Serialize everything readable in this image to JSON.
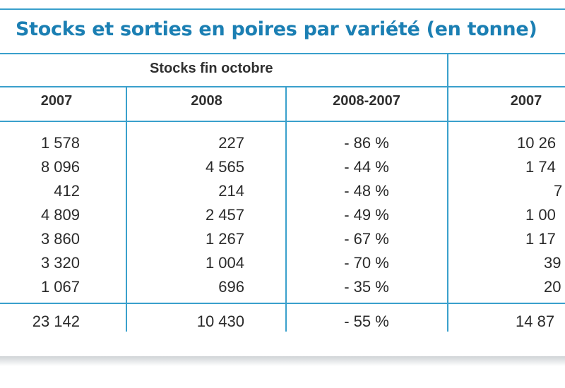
{
  "title": "Stocks et sorties en poires par variété (en tonne)",
  "group_header": "Stocks fin octobre",
  "columns": [
    "2007",
    "2008",
    "2008-2007",
    "2007"
  ],
  "rows": [
    [
      "1 578",
      "227",
      "- 86 %",
      "10 26"
    ],
    [
      "8 096",
      "4 565",
      "- 44 %",
      "1 74"
    ],
    [
      "412",
      "214",
      "- 48 %",
      "7"
    ],
    [
      "4 809",
      "2 457",
      "- 49 %",
      "1 00"
    ],
    [
      "3 860",
      "1 267",
      "- 67 %",
      "1 17"
    ],
    [
      "3 320",
      "1 004",
      "- 70 %",
      "39"
    ],
    [
      "1 067",
      "696",
      "- 35 %",
      "20"
    ]
  ],
  "total": [
    "23 142",
    "10 430",
    "- 55 %",
    "14 87"
  ],
  "colors": {
    "accent": "#3aa0cc",
    "title": "#1b7fb3"
  }
}
